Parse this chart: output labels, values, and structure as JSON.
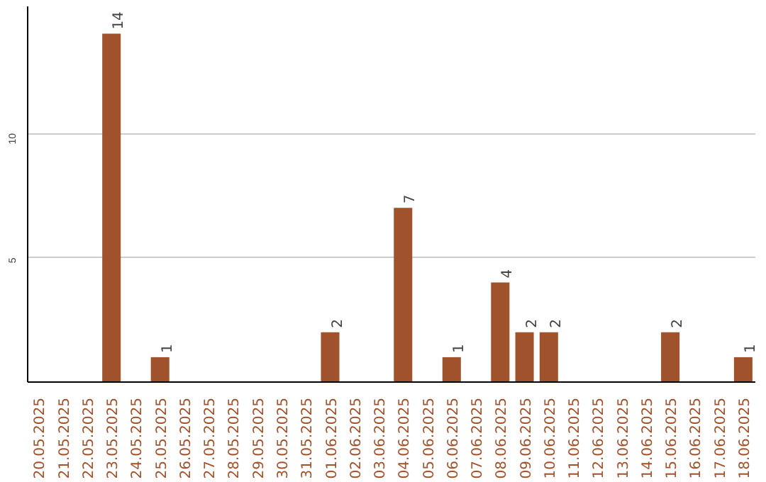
{
  "chart_data": {
    "type": "bar",
    "categories": [
      "20.05.2025",
      "21.05.2025",
      "22.05.2025",
      "23.05.2025",
      "24.05.2025",
      "25.05.2025",
      "26.05.2025",
      "27.05.2025",
      "28.05.2025",
      "29.05.2025",
      "30.05.2025",
      "31.05.2025",
      "01.06.2025",
      "02.06.2025",
      "03.06.2025",
      "04.06.2025",
      "05.06.2025",
      "06.06.2025",
      "07.06.2025",
      "08.06.2025",
      "09.06.2025",
      "10.06.2025",
      "11.06.2025",
      "12.06.2025",
      "13.06.2025",
      "14.06.2025",
      "15.06.2025",
      "16.06.2025",
      "17.06.2025",
      "18.06.2025"
    ],
    "values": [
      0,
      0,
      0,
      14,
      0,
      1,
      0,
      0,
      0,
      0,
      0,
      0,
      2,
      0,
      0,
      7,
      0,
      1,
      0,
      4,
      2,
      2,
      0,
      0,
      0,
      0,
      2,
      0,
      0,
      1
    ],
    "value_labels": [
      null,
      null,
      null,
      "14",
      null,
      "1",
      null,
      null,
      null,
      null,
      null,
      null,
      "2",
      null,
      null,
      "7",
      null,
      "1",
      null,
      "4",
      "2",
      "2",
      null,
      null,
      null,
      null,
      "2",
      null,
      null,
      "1"
    ],
    "color": "#a0522d",
    "ylim": [
      0,
      15.1
    ],
    "yticks": [
      5,
      10
    ],
    "grid": "y"
  }
}
